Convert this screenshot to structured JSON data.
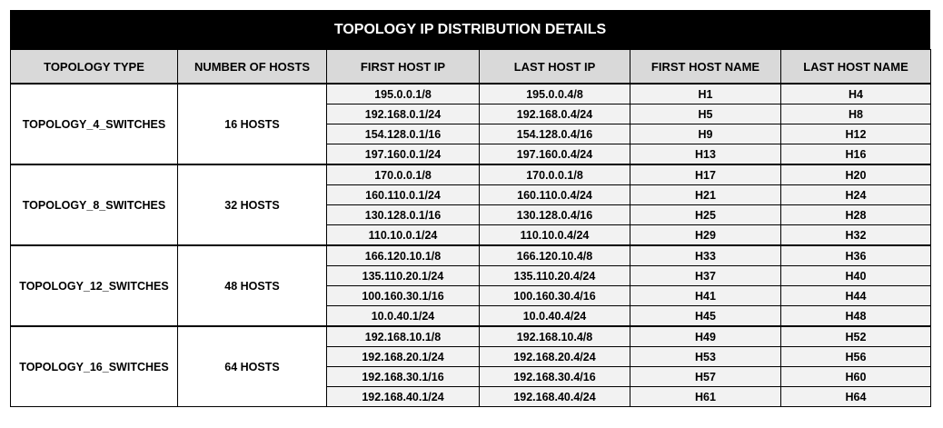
{
  "title": "TOPOLOGY IP DISTRIBUTION DETAILS",
  "columns": [
    "TOPOLOGY TYPE",
    "NUMBER OF HOSTS",
    "FIRST HOST IP",
    "LAST HOST IP",
    "FIRST HOST NAME",
    "LAST HOST NAME"
  ],
  "groups": [
    {
      "topology": "TOPOLOGY_4_SWITCHES",
      "hosts": "16 HOSTS",
      "rows": [
        [
          "195.0.0.1/8",
          "195.0.0.4/8",
          "H1",
          "H4"
        ],
        [
          "192.168.0.1/24",
          "192.168.0.4/24",
          "H5",
          "H8"
        ],
        [
          "154.128.0.1/16",
          "154.128.0.4/16",
          "H9",
          "H12"
        ],
        [
          "197.160.0.1/24",
          "197.160.0.4/24",
          "H13",
          "H16"
        ]
      ]
    },
    {
      "topology": "TOPOLOGY_8_SWITCHES",
      "hosts": "32 HOSTS",
      "rows": [
        [
          "170.0.0.1/8",
          "170.0.0.1/8",
          "H17",
          "H20"
        ],
        [
          "160.110.0.1/24",
          "160.110.0.4/24",
          "H21",
          "H24"
        ],
        [
          "130.128.0.1/16",
          "130.128.0.4/16",
          "H25",
          "H28"
        ],
        [
          "110.10.0.1/24",
          "110.10.0.4/24",
          "H29",
          "H32"
        ]
      ]
    },
    {
      "topology": "TOPOLOGY_12_SWITCHES",
      "hosts": "48 HOSTS",
      "rows": [
        [
          "166.120.10.1/8",
          "166.120.10.4/8",
          "H33",
          "H36"
        ],
        [
          "135.110.20.1/24",
          "135.110.20.4/24",
          "H37",
          "H40"
        ],
        [
          "100.160.30.1/16",
          "100.160.30.4/16",
          "H41",
          "H44"
        ],
        [
          "10.0.40.1/24",
          "10.0.40.4/24",
          "H45",
          "H48"
        ]
      ]
    },
    {
      "topology": "TOPOLOGY_16_SWITCHES",
      "hosts": "64 HOSTS",
      "rows": [
        [
          "192.168.10.1/8",
          "192.168.10.4/8",
          "H49",
          "H52"
        ],
        [
          "192.168.20.1/24",
          "192.168.20.4/24",
          "H53",
          "H56"
        ],
        [
          "192.168.30.1/16",
          "192.168.30.4/16",
          "H57",
          "H60"
        ],
        [
          "192.168.40.1/24",
          "192.168.40.4/24",
          "H61",
          "H64"
        ]
      ]
    }
  ]
}
